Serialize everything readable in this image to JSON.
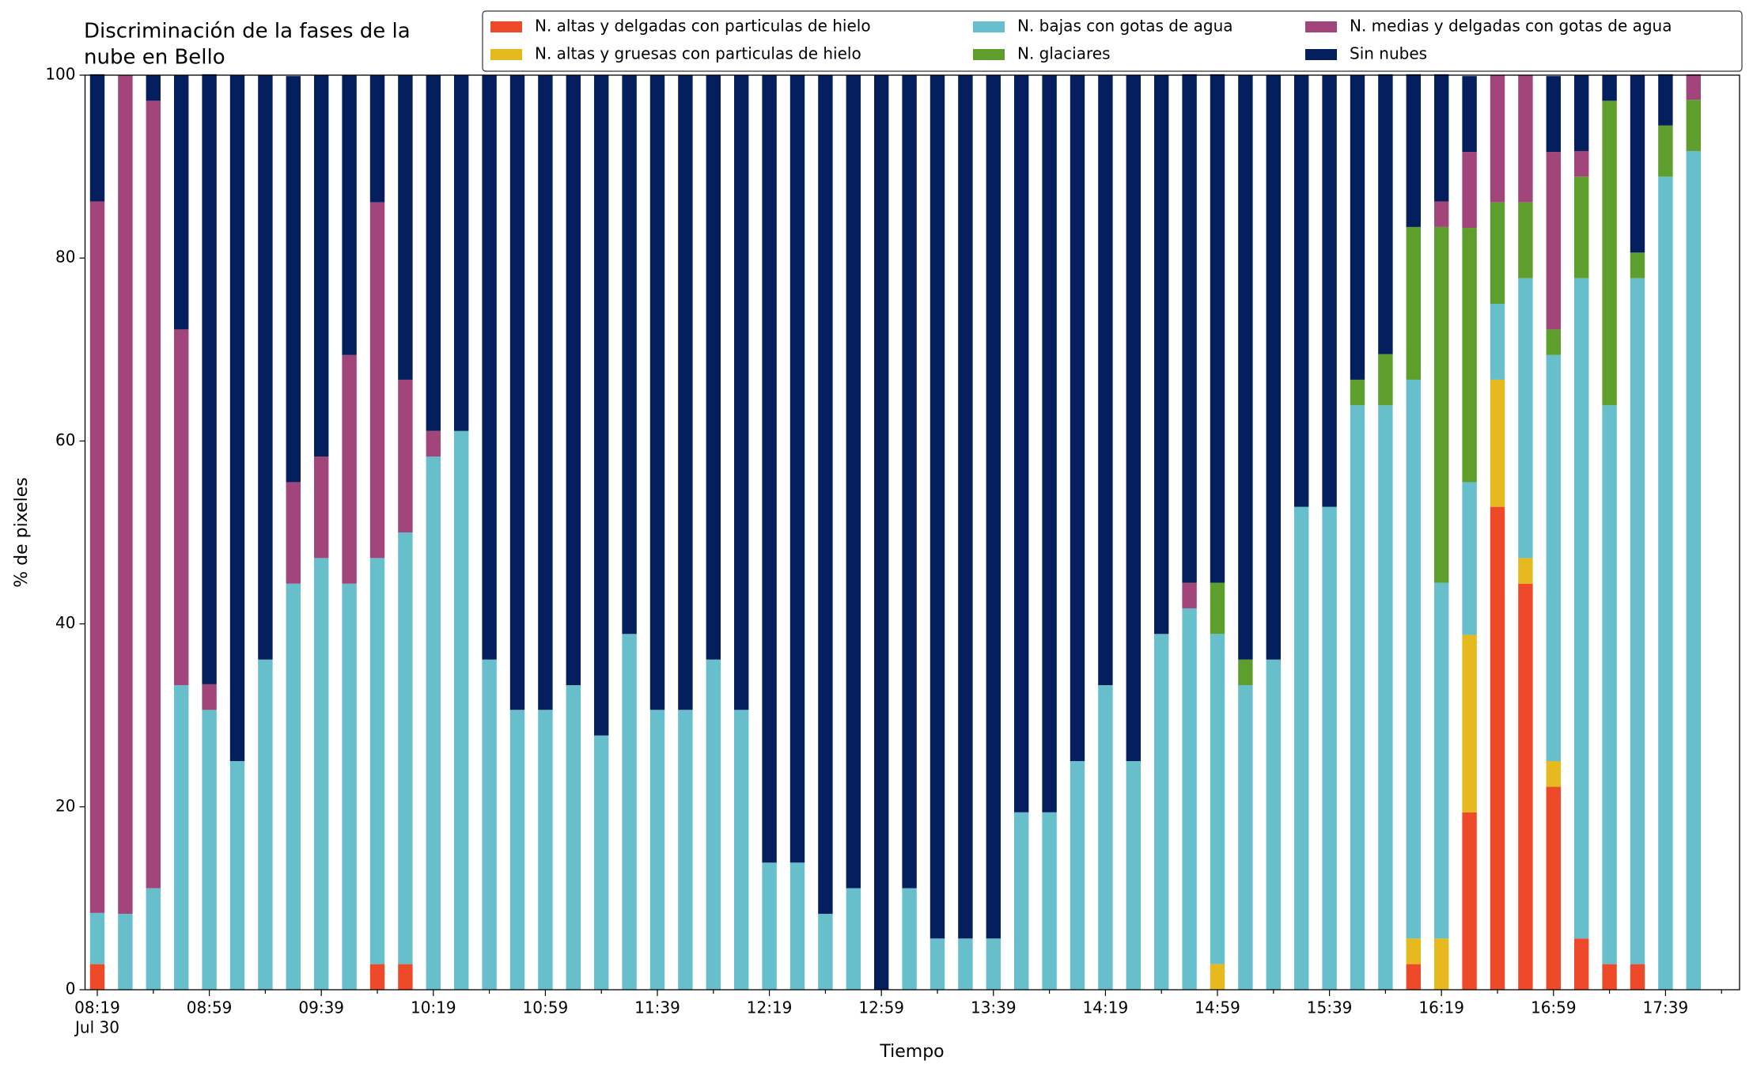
{
  "chart_data": {
    "type": "stacked_bar",
    "title": [
      "Discriminación de la fases de la",
      "nube en Bello"
    ],
    "xlabel": "Tiempo",
    "ylabel": "% de pixeles",
    "categories": [
      "08:19",
      null,
      null,
      null,
      "08:59",
      null,
      null,
      null,
      "09:39",
      null,
      null,
      null,
      "10:19",
      null,
      null,
      null,
      "10:59",
      null,
      null,
      null,
      "11:39",
      null,
      null,
      null,
      "12:19",
      null,
      null,
      null,
      "12:59",
      null,
      null,
      null,
      "13:39",
      null,
      null,
      null,
      "14:19",
      null,
      null,
      null,
      "14:59",
      null,
      null,
      null,
      "15:39",
      null,
      null,
      null,
      "16:19",
      null,
      null,
      null,
      "16:59",
      null,
      null,
      null,
      "17:39",
      null
    ],
    "date_label": "Jul 30",
    "ylim": [
      0,
      100
    ],
    "yticks": [
      0,
      20,
      40,
      60,
      80,
      100
    ],
    "legend": "upper right",
    "series": [
      {
        "name": "N. altas y delgadas con particulas de hielo",
        "color": "#ee4a2a",
        "values": [
          2.8,
          0,
          0,
          0,
          0,
          0,
          0,
          0,
          0,
          0,
          2.8,
          2.8,
          0,
          0,
          0,
          0,
          0,
          0,
          0,
          0,
          0,
          0,
          0,
          0,
          0,
          0,
          0,
          0,
          0,
          0,
          0,
          0,
          0,
          0,
          0,
          0,
          0,
          0,
          0,
          0,
          0,
          0,
          0,
          0,
          0,
          0,
          0,
          2.8,
          0,
          19.4,
          52.8,
          44.4,
          22.2,
          5.6,
          2.8,
          2.8,
          0,
          0
        ]
      },
      {
        "name": "N. altas y gruesas con particulas de hielo",
        "color": "#e6b91e",
        "values": [
          0,
          0,
          0,
          0,
          0,
          0,
          0,
          0,
          0,
          0,
          0,
          0,
          0,
          0,
          0,
          0,
          0,
          0,
          0,
          0,
          0,
          0,
          0,
          0,
          0,
          0,
          0,
          0,
          0,
          0,
          0,
          0,
          0,
          0,
          0,
          0,
          0,
          0,
          0,
          0,
          2.8,
          0,
          0,
          0,
          0,
          0,
          0,
          2.8,
          5.6,
          19.4,
          13.9,
          2.8,
          2.8,
          0,
          0,
          0,
          0,
          0
        ]
      },
      {
        "name": "N. bajas con gotas de agua",
        "color": "#66bfca",
        "values": [
          5.6,
          8.3,
          11.1,
          33.3,
          30.6,
          25,
          36.1,
          44.4,
          47.2,
          44.4,
          44.4,
          47.2,
          58.3,
          61.1,
          36.1,
          30.6,
          30.6,
          33.3,
          27.8,
          38.9,
          30.6,
          30.6,
          36.1,
          30.6,
          13.9,
          13.9,
          8.3,
          11.1,
          0,
          11.1,
          5.6,
          5.6,
          5.6,
          19.4,
          19.4,
          25,
          33.3,
          25,
          38.9,
          41.7,
          36.1,
          33.3,
          36.1,
          52.8,
          52.8,
          63.9,
          63.9,
          61.1,
          38.9,
          16.7,
          8.3,
          30.6,
          44.4,
          72.2,
          61.1,
          75,
          88.9,
          91.7
        ]
      },
      {
        "name": "N. glaciares",
        "color": "#5e9e2d",
        "values": [
          0,
          0,
          0,
          0,
          0,
          0,
          0,
          0,
          0,
          0,
          0,
          0,
          0,
          0,
          0,
          0,
          0,
          0,
          0,
          0,
          0,
          0,
          0,
          0,
          0,
          0,
          0,
          0,
          0,
          0,
          0,
          0,
          0,
          0,
          0,
          0,
          0,
          0,
          0,
          0,
          5.6,
          2.8,
          0,
          0,
          0,
          2.8,
          5.6,
          16.7,
          38.9,
          27.8,
          11.1,
          8.3,
          2.8,
          11.1,
          33.3,
          2.8,
          5.6,
          5.6
        ]
      },
      {
        "name": "N. medias y delgadas con gotas de agua",
        "color": "#a1457a",
        "values": [
          77.8,
          91.7,
          86.1,
          38.9,
          2.8,
          0,
          0,
          11.1,
          11.1,
          25,
          38.9,
          16.7,
          2.8,
          0,
          0,
          0,
          0,
          0,
          0,
          0,
          0,
          0,
          0,
          0,
          0,
          0,
          0,
          0,
          0,
          0,
          0,
          0,
          0,
          0,
          0,
          0,
          0,
          0,
          0,
          2.8,
          0,
          0,
          0,
          0,
          0,
          0,
          0,
          0,
          2.8,
          8.3,
          13.9,
          13.9,
          19.4,
          2.8,
          0,
          0,
          0,
          2.8
        ]
      },
      {
        "name": "Sin nubes",
        "color": "#041e5e",
        "values": [
          13.9,
          0,
          2.8,
          27.8,
          66.7,
          75,
          63.9,
          44.4,
          41.7,
          30.6,
          13.9,
          33.3,
          38.9,
          38.9,
          63.9,
          69.4,
          69.4,
          66.7,
          72.2,
          61.1,
          69.4,
          69.4,
          63.9,
          69.4,
          86.1,
          86.1,
          91.7,
          88.9,
          100,
          88.9,
          94.4,
          94.4,
          94.4,
          80.6,
          80.6,
          75,
          66.7,
          75,
          61.1,
          55.6,
          55.6,
          63.9,
          63.9,
          47.2,
          47.2,
          33.3,
          30.6,
          16.7,
          13.9,
          8.3,
          0,
          0,
          8.3,
          8.3,
          2.8,
          19.4,
          5.6,
          0
        ]
      }
    ]
  }
}
